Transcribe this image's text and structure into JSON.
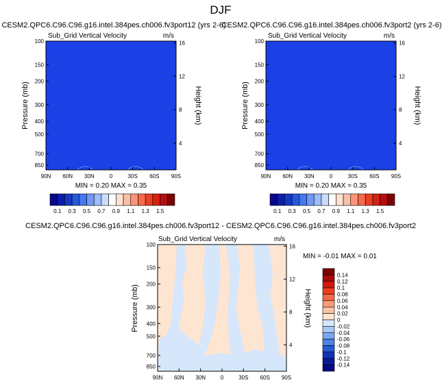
{
  "page_title": "DJF",
  "chart_data": [
    {
      "type": "heatmap",
      "title": "CESM2.QPC6.C96.C96.g16.intel.384pes.ch006.fv3port12 (yrs 2-6)",
      "subtitle": "Sub_Grid Vertical Velocity",
      "units": "m/s",
      "ylabel": "Pressure (mb)",
      "y2label": "Height (km)",
      "x_ticks": [
        "90N",
        "60N",
        "30N",
        "0",
        "30S",
        "60S",
        "90S"
      ],
      "y_ticks": [
        "100",
        "150",
        "200",
        "300",
        "400",
        "500",
        "700",
        "850"
      ],
      "y2_ticks": [
        "16",
        "12",
        "8",
        "4"
      ],
      "stats": "MIN =  0.20  MAX =  0.35",
      "fill_color": "#1a40e6",
      "colorbar": {
        "labels": [
          "0.1",
          "0.3",
          "0.5",
          "0.7",
          "0.9",
          "1.1",
          "1.3",
          "1.5"
        ],
        "colors": [
          "#08088c",
          "#0c1ea8",
          "#1638c4",
          "#2658de",
          "#4678ee",
          "#6f99f5",
          "#9dbcf8",
          "#cbdcfb",
          "#ffffff",
          "#fde2d2",
          "#fbbfa4",
          "#f9947a",
          "#f56a4c",
          "#ea4024",
          "#d42311",
          "#b30d0d",
          "#7a0404"
        ]
      }
    },
    {
      "type": "heatmap",
      "title": "CESM2.QPC6.C96.C96.g16.intel.384pes.ch006.fv3port2 (yrs 2-6)",
      "subtitle": "Sub_Grid Vertical Velocity",
      "units": "m/s",
      "ylabel": "Pressure (mb)",
      "y2label": "Height (km)",
      "x_ticks": [
        "90N",
        "60N",
        "30N",
        "0",
        "30S",
        "60S",
        "90S"
      ],
      "y_ticks": [
        "100",
        "150",
        "200",
        "300",
        "400",
        "500",
        "700",
        "850"
      ],
      "y2_ticks": [
        "16",
        "12",
        "8",
        "4"
      ],
      "stats": "MIN =  0.20  MAX =  0.35",
      "fill_color": "#1a40e6",
      "colorbar": {
        "labels": [
          "0.1",
          "0.3",
          "0.5",
          "0.7",
          "0.9",
          "1.1",
          "1.3",
          "1.5"
        ],
        "colors": [
          "#08088c",
          "#0c1ea8",
          "#1638c4",
          "#2658de",
          "#4678ee",
          "#6f99f5",
          "#9dbcf8",
          "#cbdcfb",
          "#ffffff",
          "#fde2d2",
          "#fbbfa4",
          "#f9947a",
          "#f56a4c",
          "#ea4024",
          "#d42311",
          "#b30d0d",
          "#7a0404"
        ]
      }
    },
    {
      "type": "heatmap",
      "title": "CESM2.QPC6.C96.C96.g16.intel.384pes.ch006.fv3port12 - CESM2.QPC6.C96.C96.g16.intel.384pes.ch006.fv3port2",
      "subtitle": "Sub_Grid Vertical Velocity",
      "units": "m/s",
      "ylabel": "Pressure (mb)",
      "y2label": "Height (km)",
      "x_ticks": [
        "90N",
        "60N",
        "30N",
        "0",
        "30S",
        "60S",
        "90S"
      ],
      "y_ticks": [
        "100",
        "150",
        "200",
        "300",
        "400",
        "500",
        "700",
        "850"
      ],
      "y2_ticks": [
        "16",
        "12",
        "8",
        "4"
      ],
      "stats": "MIN = -0.01  MAX =  0.01",
      "fill_color": "#fde5d2",
      "secondary_color": "#d6e6fb",
      "colorbar": {
        "labels": [
          "0.14",
          "0.12",
          "0.1",
          "0.08",
          "0.06",
          "0.04",
          "0.02",
          "0",
          "-0.02",
          "-0.04",
          "-0.06",
          "-0.08",
          "-0.1",
          "-0.12",
          "-0.14"
        ],
        "colors": [
          "#7a0404",
          "#a80a0a",
          "#d01a0d",
          "#ef3c1c",
          "#f56a48",
          "#f89a78",
          "#fbc4a8",
          "#fde5d2",
          "#d6e6fb",
          "#a9c7f7",
          "#7aa6f1",
          "#4d82e6",
          "#2858d6",
          "#1232b4",
          "#0a1a96",
          "#080a80"
        ]
      }
    }
  ]
}
